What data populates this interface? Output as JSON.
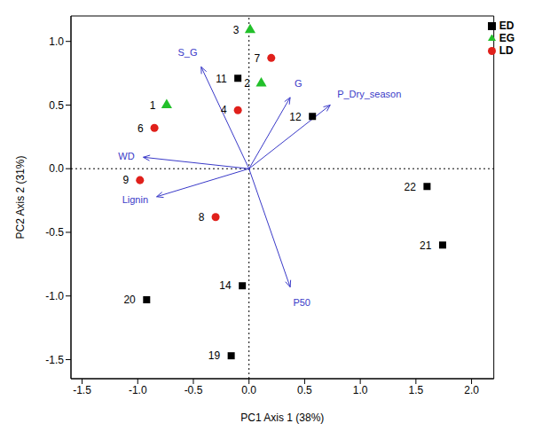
{
  "chart_data": {
    "type": "scatter",
    "x_label": "PC1 Axis 1 (38%)",
    "y_label": "PC2 Axis 2 (31%)",
    "xlim": [
      -1.6,
      2.2
    ],
    "ylim": [
      -1.65,
      1.2
    ],
    "xticks": [
      -1.5,
      {
        "value": -1.0,
        "label": "-1.0"
      },
      {
        "value": -0.5,
        "label": "-0.5"
      },
      {
        "value": 0,
        "label": "0.0"
      },
      {
        "value": 0.5,
        "label": "0.5"
      },
      {
        "value": 1.0,
        "label": "1.0"
      },
      {
        "value": 1.5,
        "label": "1.5"
      },
      {
        "value": 2.0,
        "label": "2.0"
      }
    ],
    "yticks": [
      -1.5,
      {
        "value": -1.0,
        "label": "-1.0"
      },
      {
        "value": -0.5,
        "label": "-0.5"
      },
      {
        "value": 0,
        "label": "0.0"
      },
      {
        "value": 0.5,
        "label": "0.5"
      },
      {
        "value": 1.0,
        "label": "1.0"
      }
    ],
    "grid": false,
    "legend": "top-right",
    "series": [
      {
        "name": "ED",
        "color": "#000000",
        "marker": "square",
        "labels": [
          11,
          12,
          22,
          21,
          14,
          20,
          19
        ],
        "x": [
          -0.1,
          0.57,
          1.6,
          1.74,
          -0.06,
          -0.92,
          -0.16
        ],
        "values": [
          0.71,
          0.41,
          -0.14,
          -0.6,
          -0.92,
          -1.03,
          -1.47
        ]
      },
      {
        "name": "LD",
        "color": "#e0201b",
        "marker": "circle",
        "labels": [
          7,
          4,
          6,
          9,
          8
        ],
        "x": [
          0.2,
          -0.1,
          -0.85,
          -0.98,
          -0.3
        ],
        "values": [
          0.87,
          0.46,
          0.32,
          -0.09,
          -0.38
        ]
      },
      {
        "name": "EG",
        "color": "#22c02a",
        "marker": "triangle",
        "labels": [
          3,
          2,
          1
        ],
        "x": [
          0.01,
          0.11,
          -0.74
        ],
        "values": [
          1.09,
          0.67,
          0.5
        ]
      }
    ],
    "vectors": {
      "color": "#3a3ac8",
      "names": [
        "S_G",
        "G",
        "P_Dry_season",
        "WD",
        "Lignin",
        "P50"
      ],
      "x": [
        -0.43,
        0.37,
        0.73,
        -0.95,
        -0.83,
        0.37
      ],
      "y": [
        0.8,
        0.56,
        0.5,
        0.09,
        -0.22,
        -0.93
      ]
    }
  }
}
